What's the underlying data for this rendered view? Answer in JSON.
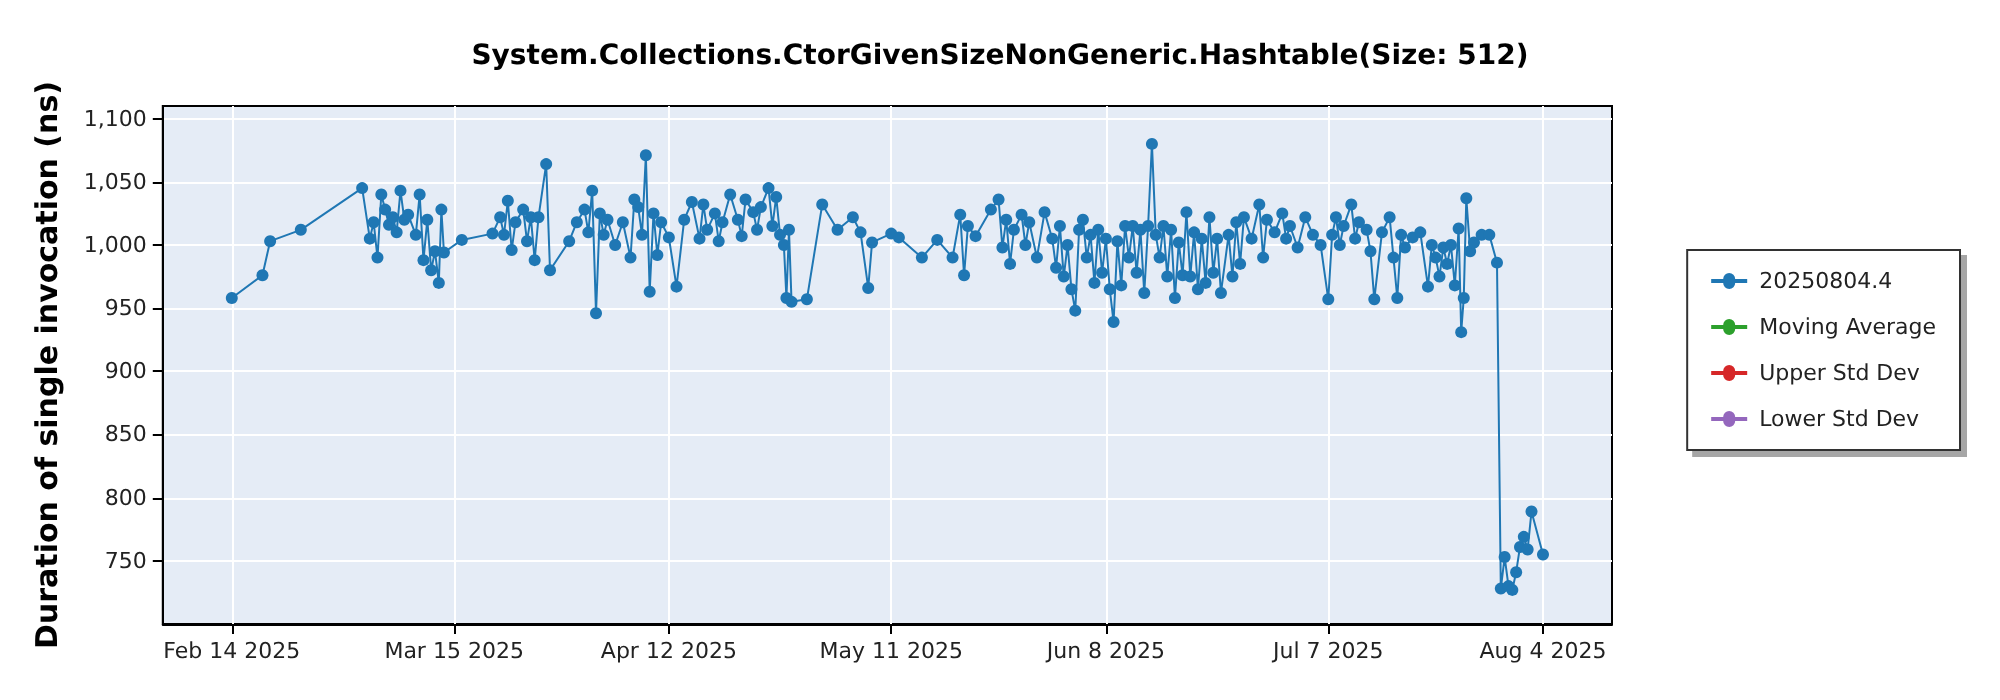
{
  "chart_data": {
    "type": "line",
    "title": "System.Collections.CtorGivenSizeNonGeneric.Hashtable(Size: 512)",
    "ylabel": "Duration of single invocation (ns)",
    "xlim": [
      "2025-02-05",
      "2025-08-13"
    ],
    "xticks": [
      {
        "value": "2025-02-14",
        "label": "Feb 14 2025"
      },
      {
        "value": "2025-03-15",
        "label": "Mar 15 2025"
      },
      {
        "value": "2025-04-12",
        "label": "Apr 12 2025"
      },
      {
        "value": "2025-05-11",
        "label": "May 11 2025"
      },
      {
        "value": "2025-06-08",
        "label": "Jun 8 2025"
      },
      {
        "value": "2025-07-07",
        "label": "Jul 7 2025"
      },
      {
        "value": "2025-08-04",
        "label": "Aug 4 2025"
      }
    ],
    "ylim": [
      700,
      1110
    ],
    "yticks": [
      750,
      800,
      850,
      900,
      950,
      {
        "value": 1000,
        "label": "1,000"
      },
      {
        "value": 1050,
        "label": "1,050"
      },
      {
        "value": 1100,
        "label": "1,100"
      }
    ],
    "grid": true,
    "legend": "right",
    "marker": "circle",
    "line_style": "solid",
    "series": [
      {
        "name": "20250804.4",
        "color": "#1f77b4",
        "x": [
          "2025-02-14",
          "2025-02-18",
          "2025-02-19",
          "2025-02-23",
          "2025-03-03",
          "2025-03-04",
          "2025-03-04T12:00",
          "2025-03-05",
          "2025-03-05T12:00",
          "2025-03-06",
          "2025-03-06T12:00",
          "2025-03-07",
          "2025-03-07T12:00",
          "2025-03-08",
          "2025-03-08T12:00",
          "2025-03-09",
          "2025-03-10",
          "2025-03-10T12:00",
          "2025-03-11",
          "2025-03-11T12:00",
          "2025-03-12",
          "2025-03-12T12:00",
          "2025-03-13",
          "2025-03-13T08:00",
          "2025-03-13T16:00",
          "2025-03-16",
          "2025-03-20",
          "2025-03-21",
          "2025-03-21T12:00",
          "2025-03-22",
          "2025-03-22T12:00",
          "2025-03-23",
          "2025-03-24",
          "2025-03-24T12:00",
          "2025-03-25",
          "2025-03-25T12:00",
          "2025-03-26",
          "2025-03-27",
          "2025-03-27T12:00",
          "2025-03-30",
          "2025-03-31",
          "2025-04-01",
          "2025-04-01T12:00",
          "2025-04-02",
          "2025-04-02T12:00",
          "2025-04-03",
          "2025-04-03T12:00",
          "2025-04-04",
          "2025-04-05",
          "2025-04-06",
          "2025-04-07",
          "2025-04-07T12:00",
          "2025-04-08",
          "2025-04-08T12:00",
          "2025-04-09",
          "2025-04-09T12:00",
          "2025-04-10",
          "2025-04-10T12:00",
          "2025-04-11",
          "2025-04-12",
          "2025-04-13",
          "2025-04-14",
          "2025-04-15",
          "2025-04-16",
          "2025-04-16T12:00",
          "2025-04-17",
          "2025-04-18",
          "2025-04-18T12:00",
          "2025-04-19",
          "2025-04-20",
          "2025-04-21",
          "2025-04-21T12:00",
          "2025-04-22",
          "2025-04-23",
          "2025-04-23T12:00",
          "2025-04-24",
          "2025-04-25",
          "2025-04-25T12:00",
          "2025-04-26",
          "2025-04-26T12:00",
          "2025-04-27",
          "2025-04-27T08:00",
          "2025-04-27T16:00",
          "2025-04-28",
          "2025-04-30",
          "2025-05-02",
          "2025-05-04",
          "2025-05-06",
          "2025-05-07",
          "2025-05-08",
          "2025-05-08T12:00",
          "2025-05-11",
          "2025-05-12",
          "2025-05-15",
          "2025-05-17",
          "2025-05-19",
          "2025-05-20",
          "2025-05-20T12:00",
          "2025-05-21",
          "2025-05-22",
          "2025-05-24",
          "2025-05-25",
          "2025-05-25T12:00",
          "2025-05-26",
          "2025-05-26T12:00",
          "2025-05-27",
          "2025-05-28",
          "2025-05-28T12:00",
          "2025-05-29",
          "2025-05-30",
          "2025-05-31",
          "2025-06-01",
          "2025-06-01T12:00",
          "2025-06-02",
          "2025-06-02T12:00",
          "2025-06-03",
          "2025-06-03T12:00",
          "2025-06-04",
          "2025-06-04T12:00",
          "2025-06-05",
          "2025-06-05T12:00",
          "2025-06-06",
          "2025-06-06T12:00",
          "2025-06-07",
          "2025-06-07T12:00",
          "2025-06-08",
          "2025-06-08T12:00",
          "2025-06-09",
          "2025-06-09T12:00",
          "2025-06-10",
          "2025-06-10T12:00",
          "2025-06-11",
          "2025-06-11T12:00",
          "2025-06-12",
          "2025-06-12T12:00",
          "2025-06-13",
          "2025-06-13T12:00",
          "2025-06-14",
          "2025-06-14T12:00",
          "2025-06-15",
          "2025-06-15T12:00",
          "2025-06-16",
          "2025-06-16T12:00",
          "2025-06-17",
          "2025-06-17T12:00",
          "2025-06-18",
          "2025-06-18T12:00",
          "2025-06-19",
          "2025-06-19T12:00",
          "2025-06-20",
          "2025-06-20T12:00",
          "2025-06-21",
          "2025-06-21T12:00",
          "2025-06-22",
          "2025-06-22T12:00",
          "2025-06-23",
          "2025-06-24",
          "2025-06-24T12:00",
          "2025-06-25",
          "2025-06-25T12:00",
          "2025-06-26",
          "2025-06-27",
          "2025-06-28",
          "2025-06-28T12:00",
          "2025-06-29",
          "2025-06-30",
          "2025-07-01",
          "2025-07-01T12:00",
          "2025-07-02",
          "2025-07-03",
          "2025-07-04",
          "2025-07-05",
          "2025-07-06",
          "2025-07-07",
          "2025-07-07T12:00",
          "2025-07-08",
          "2025-07-08T12:00",
          "2025-07-09",
          "2025-07-10",
          "2025-07-10T12:00",
          "2025-07-11",
          "2025-07-12",
          "2025-07-12T12:00",
          "2025-07-13",
          "2025-07-14",
          "2025-07-15",
          "2025-07-15T12:00",
          "2025-07-16",
          "2025-07-16T12:00",
          "2025-07-17",
          "2025-07-18",
          "2025-07-19",
          "2025-07-20",
          "2025-07-20T12:00",
          "2025-07-21",
          "2025-07-21T12:00",
          "2025-07-22",
          "2025-07-22T12:00",
          "2025-07-23",
          "2025-07-23T12:00",
          "2025-07-24",
          "2025-07-24T08:00",
          "2025-07-24T16:00",
          "2025-07-25",
          "2025-07-25T12:00",
          "2025-07-26",
          "2025-07-27",
          "2025-07-28",
          "2025-07-29",
          "2025-07-29T12:00",
          "2025-07-30",
          "2025-07-30T12:00",
          "2025-07-31",
          "2025-07-31T12:00",
          "2025-08-01",
          "2025-08-01T12:00",
          "2025-08-02",
          "2025-08-02T12:00",
          "2025-08-04"
        ],
        "values": [
          958,
          976,
          1003,
          1012,
          1045,
          1005,
          1018,
          990,
          1040,
          1028,
          1016,
          1022,
          1010,
          1043,
          1020,
          1024,
          1008,
          1040,
          988,
          1020,
          980,
          995,
          970,
          1028,
          994,
          1004,
          1009,
          1022,
          1008,
          1035,
          996,
          1018,
          1028,
          1003,
          1022,
          988,
          1022,
          1064,
          980,
          1003,
          1018,
          1028,
          1010,
          1043,
          946,
          1025,
          1008,
          1020,
          1000,
          1018,
          990,
          1036,
          1030,
          1008,
          1071,
          963,
          1025,
          992,
          1018,
          1006,
          967,
          1020,
          1034,
          1005,
          1032,
          1012,
          1025,
          1003,
          1018,
          1040,
          1020,
          1007,
          1036,
          1026,
          1012,
          1030,
          1045,
          1015,
          1038,
          1008,
          1000,
          958,
          1012,
          955,
          957,
          1032,
          1012,
          1022,
          1010,
          966,
          1002,
          1009,
          1006,
          990,
          1004,
          990,
          1024,
          976,
          1015,
          1007,
          1028,
          1036,
          998,
          1020,
          985,
          1012,
          1024,
          1000,
          1018,
          990,
          1026,
          1005,
          982,
          1015,
          975,
          1000,
          965,
          948,
          1012,
          1020,
          990,
          1008,
          970,
          1012,
          978,
          1005,
          965,
          939,
          1003,
          968,
          1015,
          990,
          1015,
          978,
          1012,
          962,
          1015,
          1080,
          1008,
          990,
          1015,
          975,
          1012,
          958,
          1002,
          976,
          1026,
          975,
          1010,
          965,
          1005,
          970,
          1022,
          978,
          1005,
          962,
          1008,
          975,
          1018,
          985,
          1022,
          1005,
          1032,
          990,
          1020,
          1010,
          1025,
          1005,
          1015,
          998,
          1022,
          1008,
          1000,
          957,
          1008,
          1022,
          1000,
          1015,
          1032,
          1005,
          1018,
          1012,
          995,
          957,
          1010,
          1022,
          990,
          958,
          1008,
          998,
          1006,
          1010,
          967,
          1000,
          990,
          975,
          998,
          985,
          1000,
          968,
          1013,
          931,
          958,
          1037,
          995,
          1002,
          1008,
          1008,
          986,
          728,
          753,
          730,
          727,
          741,
          761,
          769,
          759,
          789,
          755
        ]
      },
      {
        "name": "Moving Average",
        "color": "#2ca02c"
      },
      {
        "name": "Upper Std Dev",
        "color": "#d62728"
      },
      {
        "name": "Lower Std Dev",
        "color": "#9467bd"
      }
    ]
  }
}
